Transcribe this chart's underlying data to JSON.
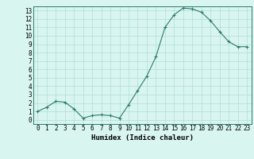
{
  "x": [
    0,
    1,
    2,
    3,
    4,
    5,
    6,
    7,
    8,
    9,
    10,
    11,
    12,
    13,
    14,
    15,
    16,
    17,
    18,
    19,
    20,
    21,
    22,
    23
  ],
  "y": [
    1,
    1.5,
    2.2,
    2.1,
    1.3,
    0.2,
    0.5,
    0.6,
    0.5,
    0.2,
    1.8,
    3.5,
    5.2,
    7.5,
    11.0,
    12.5,
    13.3,
    13.2,
    12.8,
    11.8,
    10.5,
    9.3,
    8.7,
    8.7
  ],
  "xlabel": "Humidex (Indice chaleur)",
  "xlim": [
    -0.5,
    23.5
  ],
  "ylim": [
    -0.5,
    13.5
  ],
  "yticks": [
    0,
    1,
    2,
    3,
    4,
    5,
    6,
    7,
    8,
    9,
    10,
    11,
    12,
    13
  ],
  "xticks": [
    0,
    1,
    2,
    3,
    4,
    5,
    6,
    7,
    8,
    9,
    10,
    11,
    12,
    13,
    14,
    15,
    16,
    17,
    18,
    19,
    20,
    21,
    22,
    23
  ],
  "line_color": "#2d7a6e",
  "marker": "+",
  "bg_color": "#d8f5f0",
  "grid_color": "#b0ddd6",
  "label_fontsize": 6.5,
  "tick_fontsize": 5.5
}
